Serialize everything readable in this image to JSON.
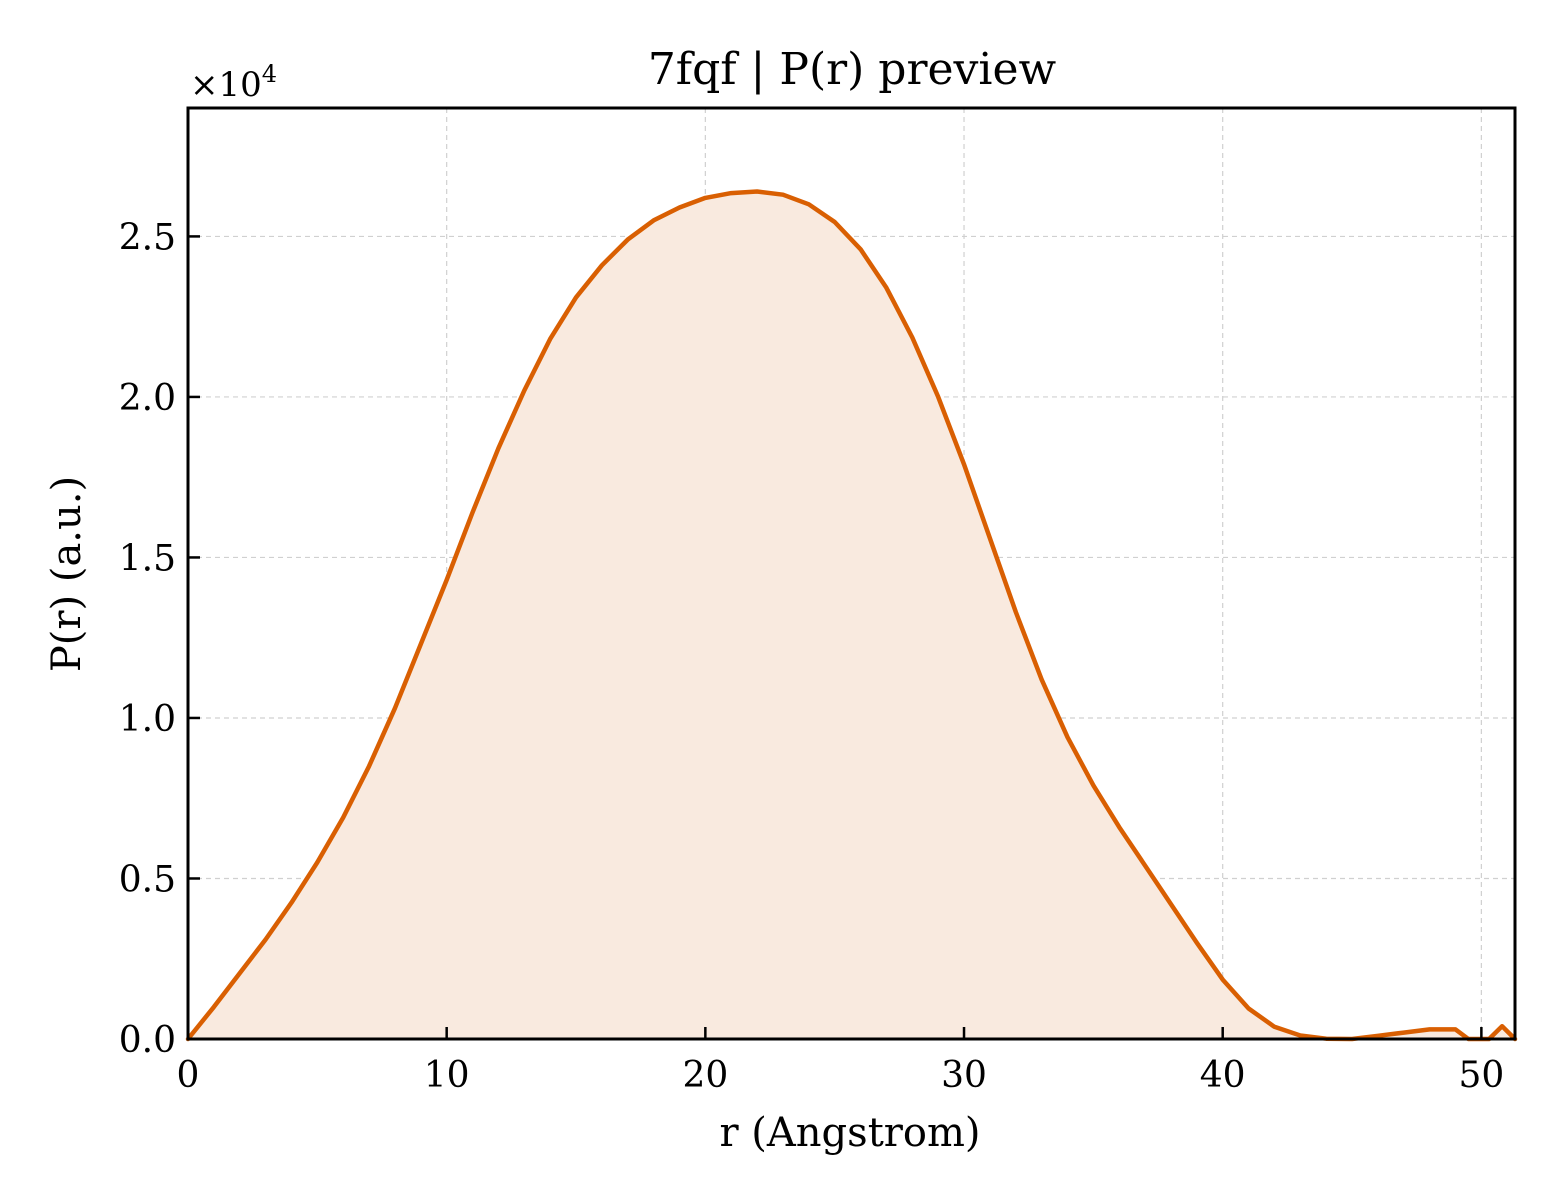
{
  "chart_data": {
    "type": "area",
    "title": "7fqf | P(r) preview",
    "xlabel": "r (Angstrom)",
    "ylabel": "P(r) (a.u.)",
    "y_multiplier_label": "×10",
    "y_multiplier_exp": "4",
    "xlim": [
      0,
      51.3
    ],
    "ylim": [
      0,
      2.9
    ],
    "x_ticks": [
      0,
      10,
      20,
      30,
      40,
      50
    ],
    "x_tick_labels": [
      "0",
      "10",
      "20",
      "30",
      "40",
      "50"
    ],
    "y_ticks": [
      0.0,
      0.5,
      1.0,
      1.5,
      2.0,
      2.5
    ],
    "y_tick_labels": [
      "0.0",
      "0.5",
      "1.0",
      "1.5",
      "2.0",
      "2.5"
    ],
    "grid": true,
    "colors": {
      "line": "#d95f02",
      "fill": "#f9eadf",
      "grid": "#d0d0d0"
    },
    "series": [
      {
        "x": [
          0,
          1,
          2,
          3,
          4,
          5,
          6,
          7,
          8,
          9,
          10,
          11,
          12,
          13,
          14,
          15,
          16,
          17,
          18,
          19,
          20,
          21,
          22,
          23,
          24,
          25,
          26,
          27,
          28,
          29,
          30,
          31,
          32,
          33,
          34,
          35,
          36,
          37,
          38,
          39,
          40,
          41,
          42,
          43,
          44,
          45,
          46,
          47,
          48,
          49,
          49.5,
          50.3,
          50.8,
          51.3
        ],
        "y": [
          0.0,
          0.1,
          0.205,
          0.31,
          0.425,
          0.55,
          0.69,
          0.85,
          1.03,
          1.23,
          1.43,
          1.64,
          1.84,
          2.02,
          2.18,
          2.31,
          2.41,
          2.49,
          2.55,
          2.59,
          2.62,
          2.635,
          2.64,
          2.63,
          2.6,
          2.545,
          2.46,
          2.34,
          2.185,
          2.0,
          1.79,
          1.56,
          1.33,
          1.12,
          0.94,
          0.79,
          0.66,
          0.54,
          0.42,
          0.3,
          0.185,
          0.095,
          0.038,
          0.011,
          0.001,
          0.0,
          0.01,
          0.02,
          0.03,
          0.03,
          0.0,
          0.0,
          0.04,
          0.0
        ]
      }
    ]
  }
}
